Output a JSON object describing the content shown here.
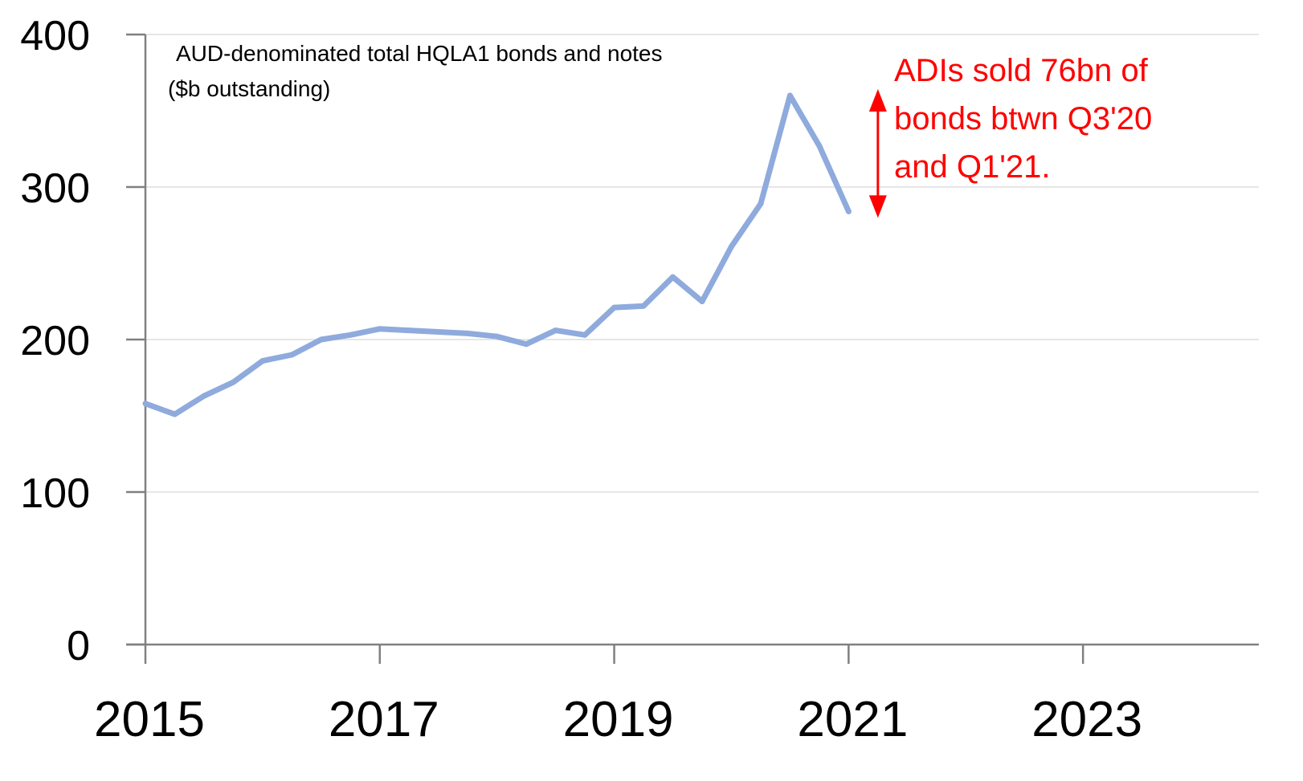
{
  "chart_data": {
    "type": "line",
    "title_lines": [
      "AUD-denominated total HQLA1 bonds and notes",
      "($b outstanding)"
    ],
    "xlabel": "",
    "ylabel": "",
    "xlim": [
      2015,
      2024.5
    ],
    "ylim": [
      0,
      400
    ],
    "x_ticks": [
      2015,
      2017,
      2019,
      2021,
      2023
    ],
    "x_tick_labels": [
      "2015",
      "2017",
      "2019",
      "2021",
      "2023"
    ],
    "y_ticks": [
      0,
      100,
      200,
      300,
      400
    ],
    "y_tick_labels": [
      "0",
      "100",
      "200",
      "300",
      "400"
    ],
    "grid": true,
    "series": [
      {
        "name": "AUD-denominated total HQLA1 bonds and notes",
        "color": "#8faadc",
        "x": [
          2015.0,
          2015.25,
          2015.5,
          2015.75,
          2016.0,
          2016.25,
          2016.5,
          2016.75,
          2017.0,
          2017.25,
          2017.5,
          2017.75,
          2018.0,
          2018.25,
          2018.5,
          2018.75,
          2019.0,
          2019.25,
          2019.5,
          2019.75,
          2020.0,
          2020.25,
          2020.5,
          2020.75,
          2021.0
        ],
        "values": [
          158,
          151,
          163,
          172,
          186,
          190,
          200,
          203,
          207,
          206,
          205,
          204,
          202,
          197,
          206,
          203,
          221,
          222,
          241,
          225,
          261,
          289,
          360,
          327,
          284
        ]
      }
    ],
    "annotation": {
      "lines": [
        "ADIs sold 76bn of",
        "bonds btwn Q3'20",
        "and Q1'21."
      ],
      "color": "#ff0000",
      "arrow_from": 360,
      "arrow_to": 284,
      "arrow_x": 2021.25
    }
  }
}
